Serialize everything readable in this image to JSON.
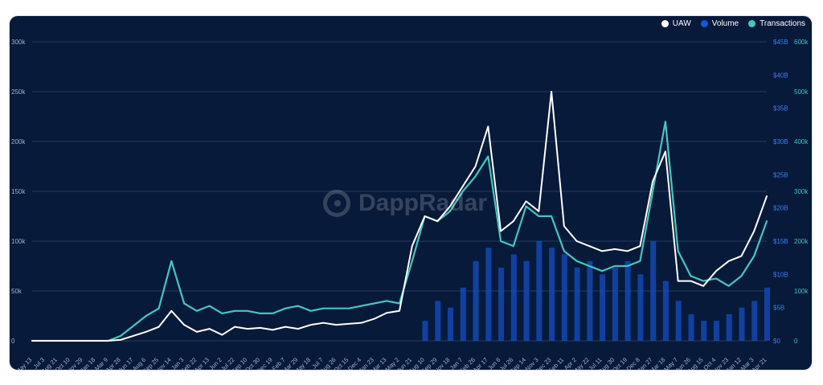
{
  "chart_data": {
    "type": "line",
    "legend_position": "top-right",
    "legend": [
      "UAW",
      "Volume",
      "Transactions"
    ],
    "left_axis_ticks": [
      "300k",
      "250k",
      "200k",
      "150k",
      "100k",
      "50k",
      "0"
    ],
    "middle_axis_ticks": [
      "$45B",
      "$40B",
      "$35B",
      "$30B",
      "$25B",
      "$20B",
      "$15B",
      "$10B",
      "$5B",
      "$0"
    ],
    "right_axis_ticks": [
      "600k",
      "500k",
      "400k",
      "300k",
      "200k",
      "100k",
      "0"
    ],
    "x_tick_labels": [
      "May 13",
      "Jul 3",
      "Aug 21",
      "Oct 10",
      "Nov 29",
      "Jan 18",
      "Mar 9",
      "Apr 28",
      "Jun 17",
      "Aug 6",
      "Sep 25",
      "Nov 14",
      "Jan 3",
      "Feb 22",
      "Apr 13",
      "Jun 2",
      "Jul 22",
      "Sep 10",
      "Oct 30",
      "Dec 19",
      "Feb 7",
      "Mar 29",
      "May 18",
      "Jul 7",
      "Aug 26",
      "Oct 15",
      "Dec 4",
      "Jan 23",
      "Mar 13",
      "May 2",
      "Jun 21",
      "Aug 10",
      "Sep 29",
      "Nov 18",
      "Jan 7",
      "Feb 26",
      "Apr 17",
      "Jun 6",
      "Jul 26",
      "Sep 14",
      "Nov 3",
      "Dec 23",
      "Feb 11",
      "Apr 2",
      "May 22",
      "Jul 11",
      "Aug 30",
      "Oct 19",
      "Dec 8",
      "Jan 27",
      "Mar 18",
      "May 7",
      "Jun 26",
      "Aug 15",
      "Oct 4",
      "Nov 23",
      "Jan 12",
      "Mar 3",
      "Apr 21"
    ],
    "y_left_range": [
      0,
      300000
    ],
    "y_volume_range": [
      0,
      45
    ],
    "y_right_range": [
      0,
      600000
    ],
    "grid": true,
    "series": [
      {
        "name": "UAW",
        "color": "#ffffff",
        "values": [
          0,
          0,
          0,
          0,
          0,
          0,
          0,
          1000,
          5000,
          9000,
          14000,
          30000,
          16000,
          9000,
          12000,
          6000,
          14000,
          12000,
          13000,
          11000,
          14000,
          12000,
          16000,
          18000,
          16000,
          17000,
          18000,
          22000,
          28000,
          30000,
          95000,
          125000,
          120000,
          135000,
          155000,
          175000,
          215000,
          110000,
          120000,
          140000,
          130000,
          250000,
          115000,
          100000,
          95000,
          90000,
          92000,
          90000,
          95000,
          160000,
          190000,
          60000,
          60000,
          55000,
          70000,
          80000,
          85000,
          110000,
          145000
        ]
      },
      {
        "name": "Transactions",
        "color": "#46c6bf",
        "values": [
          0,
          0,
          0,
          0,
          0,
          0,
          0,
          10000,
          30000,
          50000,
          65000,
          160000,
          75000,
          60000,
          70000,
          55000,
          60000,
          60000,
          55000,
          55000,
          65000,
          70000,
          60000,
          65000,
          65000,
          65000,
          70000,
          75000,
          80000,
          75000,
          160000,
          250000,
          240000,
          260000,
          300000,
          330000,
          370000,
          200000,
          190000,
          270000,
          250000,
          250000,
          180000,
          160000,
          150000,
          140000,
          150000,
          150000,
          160000,
          300000,
          440000,
          180000,
          130000,
          120000,
          125000,
          110000,
          130000,
          170000,
          240000
        ]
      },
      {
        "name": "Volume",
        "color": "#1656d8",
        "unit": "$B",
        "values": [
          0,
          0,
          0,
          0,
          0,
          0,
          0,
          0,
          0,
          0,
          0,
          0,
          0,
          0,
          0,
          0,
          0,
          0,
          0,
          0,
          0,
          0,
          0,
          0,
          0,
          0,
          0,
          0,
          0,
          0,
          0,
          3,
          6,
          5,
          8,
          12,
          14,
          11,
          13,
          12,
          15,
          14,
          13,
          11,
          12,
          10,
          11,
          12,
          10,
          15,
          9,
          6,
          4,
          3,
          3,
          4,
          5,
          6,
          8
        ]
      }
    ]
  },
  "brand": {
    "watermark": "DappRadar"
  }
}
